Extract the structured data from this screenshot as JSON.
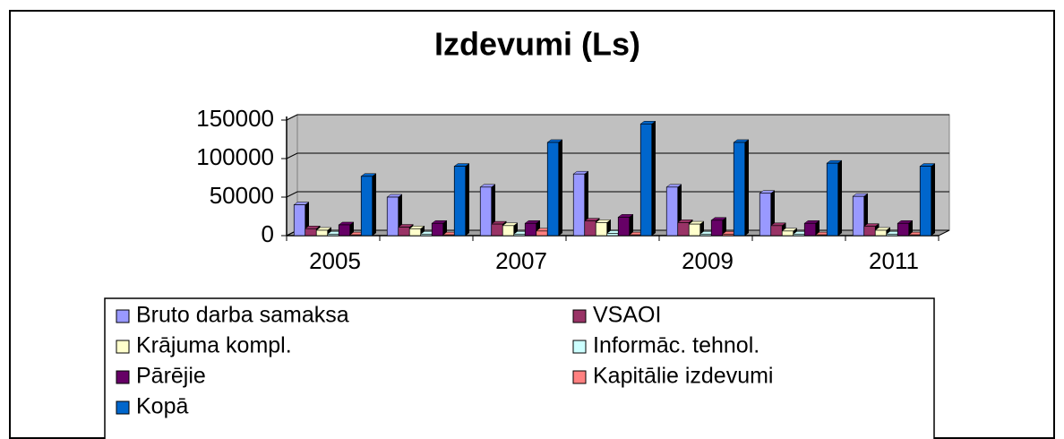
{
  "chart_data": {
    "type": "bar",
    "title": "Izdevumi (Ls)",
    "categories": [
      "2005",
      null,
      "2007",
      null,
      "2009",
      null,
      "2011"
    ],
    "series": [
      {
        "name": "Bruto darba samaksa",
        "color": "#9999ff",
        "values": [
          40000,
          50000,
          63000,
          80000,
          63000,
          55000,
          51000
        ]
      },
      {
        "name": "VSAOI",
        "color": "#993366",
        "values": [
          9000,
          11000,
          15000,
          19000,
          17000,
          13000,
          12000
        ]
      },
      {
        "name": "Krājuma kompl.",
        "color": "#ffffcc",
        "values": [
          7000,
          9000,
          13000,
          17000,
          15000,
          6000,
          7000
        ]
      },
      {
        "name": "Informāc. tehnol.",
        "color": "#ccffff",
        "values": [
          2000,
          2000,
          2000,
          3000,
          2000,
          2000,
          2000
        ]
      },
      {
        "name": "Pārējie",
        "color": "#660066",
        "values": [
          14000,
          16000,
          16000,
          24000,
          20000,
          16000,
          16000
        ]
      },
      {
        "name": "Kapitālie izdevumi",
        "color": "#ff8080",
        "values": [
          1000,
          1000,
          6000,
          1000,
          2000,
          1000,
          1000
        ]
      },
      {
        "name": "Kopā",
        "color": "#0066cc",
        "values": [
          77000,
          90000,
          121000,
          145000,
          121000,
          94000,
          90000
        ]
      }
    ],
    "ylim": [
      0,
      150000
    ],
    "yticks": [
      0,
      50000,
      100000,
      150000
    ],
    "grid": true
  }
}
